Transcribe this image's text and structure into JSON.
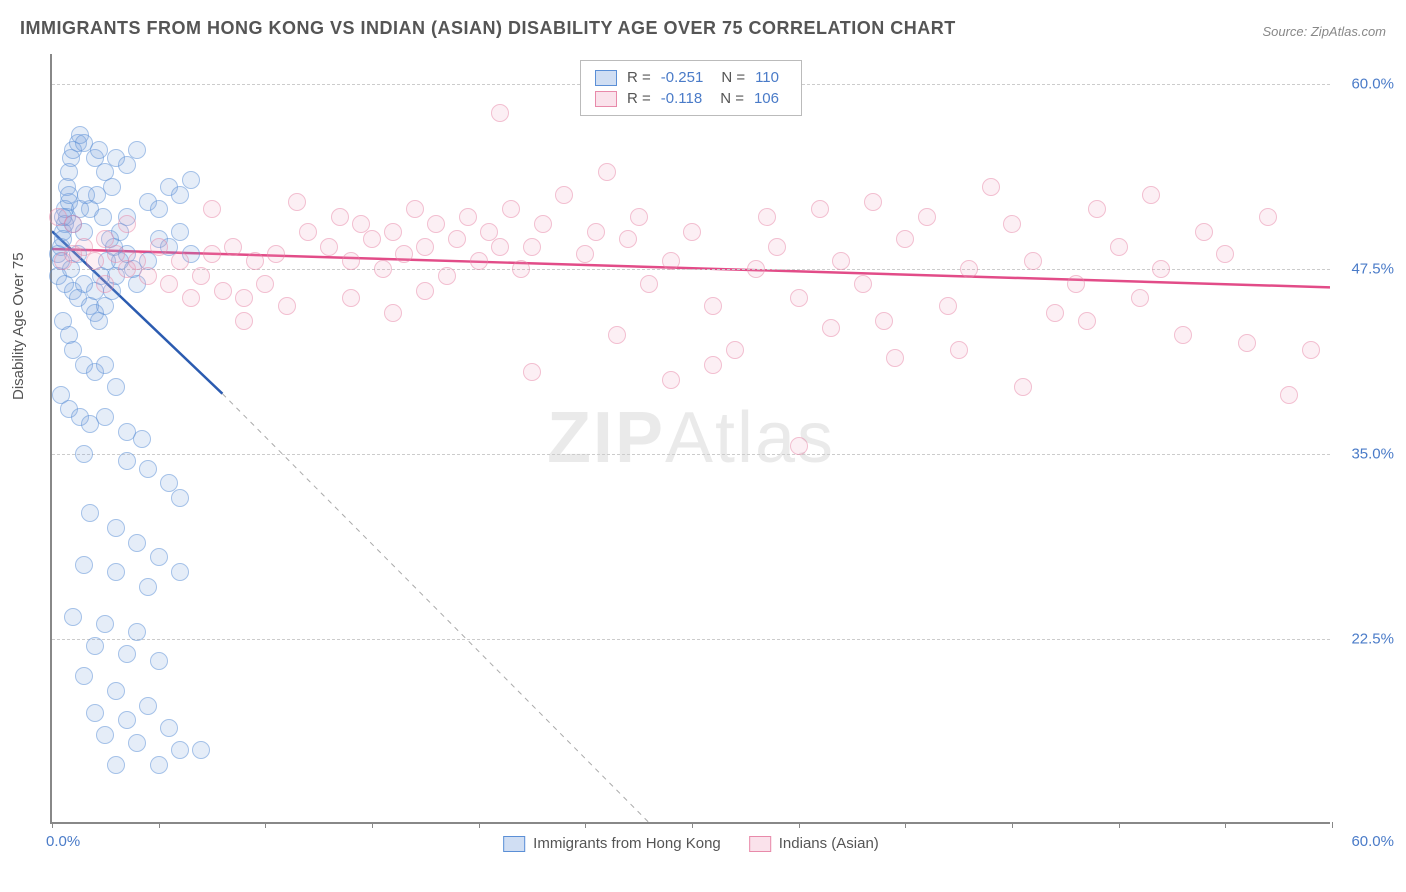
{
  "title": "IMMIGRANTS FROM HONG KONG VS INDIAN (ASIAN) DISABILITY AGE OVER 75 CORRELATION CHART",
  "source": "Source: ZipAtlas.com",
  "y_axis_label": "Disability Age Over 75",
  "watermark_strong": "ZIP",
  "watermark_light": "Atlas",
  "chart": {
    "type": "scatter",
    "xlim": [
      0,
      60
    ],
    "ylim": [
      10,
      62
    ],
    "x_origin_label": "0.0%",
    "x_max_label": "60.0%",
    "y_ticks": [
      {
        "value": 22.5,
        "label": "22.5%"
      },
      {
        "value": 35.0,
        "label": "35.0%"
      },
      {
        "value": 47.5,
        "label": "47.5%"
      },
      {
        "value": 60.0,
        "label": "60.0%"
      }
    ],
    "x_tick_values": [
      0,
      5,
      10,
      15,
      20,
      25,
      30,
      35,
      40,
      45,
      50,
      55,
      60
    ],
    "background_color": "#ffffff",
    "grid_color": "#cccccc",
    "marker_size": 18,
    "series": [
      {
        "name": "Immigrants from Hong Kong",
        "color_fill": "rgba(120,160,220,0.35)",
        "color_stroke": "#5b8fd6",
        "R": "-0.251",
        "N": "110",
        "trend": {
          "x1": 0,
          "y1": 50,
          "x2": 8,
          "y2": 39,
          "color": "#2b5bb0",
          "width": 2.5,
          "dash_ext": {
            "x2": 28,
            "y2": 10
          }
        },
        "points": [
          [
            0.3,
            48.5
          ],
          [
            0.4,
            49.0
          ],
          [
            0.5,
            50.0
          ],
          [
            0.6,
            50.5
          ],
          [
            0.7,
            51.0
          ],
          [
            0.8,
            52.0
          ],
          [
            0.3,
            47.0
          ],
          [
            0.4,
            48.0
          ],
          [
            0.5,
            49.5
          ],
          [
            0.6,
            51.5
          ],
          [
            0.7,
            53.0
          ],
          [
            0.8,
            54.0
          ],
          [
            0.9,
            55.0
          ],
          [
            1.0,
            55.5
          ],
          [
            1.2,
            56.0
          ],
          [
            1.3,
            56.5
          ],
          [
            1.5,
            56.0
          ],
          [
            2.0,
            55.0
          ],
          [
            2.2,
            55.5
          ],
          [
            2.5,
            54.0
          ],
          [
            2.8,
            53.0
          ],
          [
            3.0,
            55.0
          ],
          [
            3.5,
            54.5
          ],
          [
            4.0,
            55.5
          ],
          [
            1.0,
            46.0
          ],
          [
            1.2,
            45.5
          ],
          [
            1.5,
            46.5
          ],
          [
            1.8,
            45.0
          ],
          [
            2.0,
            44.5
          ],
          [
            2.2,
            44.0
          ],
          [
            2.5,
            45.0
          ],
          [
            2.8,
            46.0
          ],
          [
            3.0,
            47.0
          ],
          [
            3.2,
            48.0
          ],
          [
            3.5,
            48.5
          ],
          [
            3.8,
            47.5
          ],
          [
            4.0,
            46.5
          ],
          [
            4.5,
            48.0
          ],
          [
            5.0,
            49.5
          ],
          [
            5.5,
            49.0
          ],
          [
            6.0,
            50.0
          ],
          [
            6.5,
            48.5
          ],
          [
            4.5,
            52.0
          ],
          [
            5.0,
            51.5
          ],
          [
            5.5,
            53.0
          ],
          [
            6.0,
            52.5
          ],
          [
            6.5,
            53.5
          ],
          [
            0.5,
            44.0
          ],
          [
            0.8,
            43.0
          ],
          [
            1.0,
            42.0
          ],
          [
            1.5,
            41.0
          ],
          [
            2.0,
            40.5
          ],
          [
            2.5,
            41.0
          ],
          [
            3.0,
            39.5
          ],
          [
            0.4,
            39.0
          ],
          [
            0.8,
            38.0
          ],
          [
            1.3,
            37.5
          ],
          [
            1.8,
            37.0
          ],
          [
            2.5,
            37.5
          ],
          [
            3.5,
            36.5
          ],
          [
            4.2,
            36.0
          ],
          [
            1.5,
            35.0
          ],
          [
            3.5,
            34.5
          ],
          [
            4.5,
            34.0
          ],
          [
            5.5,
            33.0
          ],
          [
            6.0,
            32.0
          ],
          [
            1.8,
            31.0
          ],
          [
            3.0,
            30.0
          ],
          [
            4.0,
            29.0
          ],
          [
            5.0,
            28.0
          ],
          [
            6.0,
            27.0
          ],
          [
            1.5,
            27.5
          ],
          [
            3.0,
            27.0
          ],
          [
            4.5,
            26.0
          ],
          [
            1.0,
            24.0
          ],
          [
            2.5,
            23.5
          ],
          [
            4.0,
            23.0
          ],
          [
            2.0,
            22.0
          ],
          [
            3.5,
            21.5
          ],
          [
            5.0,
            21.0
          ],
          [
            1.5,
            20.0
          ],
          [
            3.0,
            19.0
          ],
          [
            4.5,
            18.0
          ],
          [
            2.0,
            17.5
          ],
          [
            3.5,
            17.0
          ],
          [
            5.5,
            16.5
          ],
          [
            2.5,
            16.0
          ],
          [
            4.0,
            15.5
          ],
          [
            6.0,
            15.0
          ],
          [
            3.0,
            14.0
          ],
          [
            5.0,
            14.0
          ],
          [
            7.0,
            15.0
          ],
          [
            2.0,
            46.0
          ],
          [
            2.3,
            47.0
          ],
          [
            2.6,
            48.0
          ],
          [
            2.9,
            49.0
          ],
          [
            3.2,
            50.0
          ],
          [
            3.5,
            51.0
          ],
          [
            0.6,
            46.5
          ],
          [
            0.9,
            47.5
          ],
          [
            1.2,
            48.5
          ],
          [
            1.5,
            50.0
          ],
          [
            1.8,
            51.5
          ],
          [
            2.1,
            52.5
          ],
          [
            2.4,
            51.0
          ],
          [
            2.7,
            49.5
          ],
          [
            1.0,
            50.5
          ],
          [
            1.3,
            51.5
          ],
          [
            1.6,
            52.5
          ],
          [
            0.5,
            51.0
          ],
          [
            0.8,
            52.5
          ]
        ]
      },
      {
        "name": "Indians (Asian)",
        "color_fill": "rgba(240,160,190,0.30)",
        "color_stroke": "#e88aaa",
        "R": "-0.118",
        "N": "106",
        "trend": {
          "x1": 0,
          "y1": 48.8,
          "x2": 60,
          "y2": 46.2,
          "color": "#e24c88",
          "width": 2.5
        },
        "points": [
          [
            0.5,
            48.0
          ],
          [
            1.0,
            48.5
          ],
          [
            1.5,
            49.0
          ],
          [
            2.0,
            48.0
          ],
          [
            2.5,
            49.5
          ],
          [
            3.0,
            48.5
          ],
          [
            3.5,
            47.5
          ],
          [
            4.0,
            48.0
          ],
          [
            5.0,
            49.0
          ],
          [
            5.5,
            46.5
          ],
          [
            6.0,
            48.0
          ],
          [
            7.0,
            47.0
          ],
          [
            7.5,
            48.5
          ],
          [
            8.0,
            46.0
          ],
          [
            8.5,
            49.0
          ],
          [
            9.0,
            45.5
          ],
          [
            9.5,
            48.0
          ],
          [
            10.0,
            46.5
          ],
          [
            10.5,
            48.5
          ],
          [
            11.0,
            45.0
          ],
          [
            12.0,
            50.0
          ],
          [
            13.0,
            49.0
          ],
          [
            13.5,
            51.0
          ],
          [
            14.0,
            48.0
          ],
          [
            14.5,
            50.5
          ],
          [
            15.0,
            49.5
          ],
          [
            15.5,
            47.5
          ],
          [
            16.0,
            50.0
          ],
          [
            16.5,
            48.5
          ],
          [
            17.0,
            51.5
          ],
          [
            17.5,
            49.0
          ],
          [
            18.0,
            50.5
          ],
          [
            18.5,
            47.0
          ],
          [
            19.0,
            49.5
          ],
          [
            19.5,
            51.0
          ],
          [
            20.0,
            48.0
          ],
          [
            20.5,
            50.0
          ],
          [
            21.0,
            49.0
          ],
          [
            21.5,
            51.5
          ],
          [
            22.0,
            47.5
          ],
          [
            22.5,
            49.0
          ],
          [
            23.0,
            50.5
          ],
          [
            24.0,
            52.5
          ],
          [
            25.0,
            48.5
          ],
          [
            25.5,
            50.0
          ],
          [
            26.0,
            54.0
          ],
          [
            27.0,
            49.5
          ],
          [
            27.5,
            51.0
          ],
          [
            28.0,
            46.5
          ],
          [
            29.0,
            48.0
          ],
          [
            30.0,
            50.0
          ],
          [
            31.0,
            45.0
          ],
          [
            32.0,
            42.0
          ],
          [
            33.0,
            47.5
          ],
          [
            34.0,
            49.0
          ],
          [
            35.0,
            45.5
          ],
          [
            36.0,
            51.5
          ],
          [
            37.0,
            48.0
          ],
          [
            38.0,
            46.5
          ],
          [
            38.5,
            52.0
          ],
          [
            39.0,
            44.0
          ],
          [
            40.0,
            49.5
          ],
          [
            41.0,
            51.0
          ],
          [
            42.0,
            45.0
          ],
          [
            43.0,
            47.5
          ],
          [
            44.0,
            53.0
          ],
          [
            45.0,
            50.5
          ],
          [
            46.0,
            48.0
          ],
          [
            47.0,
            44.5
          ],
          [
            48.0,
            46.5
          ],
          [
            49.0,
            51.5
          ],
          [
            50.0,
            49.0
          ],
          [
            51.0,
            45.5
          ],
          [
            52.0,
            47.5
          ],
          [
            53.0,
            43.0
          ],
          [
            54.0,
            50.0
          ],
          [
            55.0,
            48.5
          ],
          [
            56.0,
            42.5
          ],
          [
            57.0,
            51.0
          ],
          [
            58.0,
            39.0
          ],
          [
            59.0,
            42.0
          ],
          [
            35.0,
            35.5
          ],
          [
            29.0,
            40.0
          ],
          [
            21.0,
            58.0
          ],
          [
            9.0,
            44.0
          ],
          [
            16.0,
            44.5
          ],
          [
            22.5,
            40.5
          ],
          [
            26.5,
            43.0
          ],
          [
            31.0,
            41.0
          ],
          [
            33.5,
            51.0
          ],
          [
            36.5,
            43.5
          ],
          [
            39.5,
            41.5
          ],
          [
            42.5,
            42.0
          ],
          [
            45.5,
            39.5
          ],
          [
            48.5,
            44.0
          ],
          [
            51.5,
            52.5
          ],
          [
            7.5,
            51.5
          ],
          [
            11.5,
            52.0
          ],
          [
            14.0,
            45.5
          ],
          [
            17.5,
            46.0
          ],
          [
            0.3,
            51.0
          ],
          [
            1.0,
            50.5
          ],
          [
            2.5,
            46.5
          ],
          [
            4.5,
            47.0
          ],
          [
            6.5,
            45.5
          ],
          [
            3.5,
            50.5
          ]
        ]
      }
    ]
  },
  "legend_bottom": [
    {
      "label": "Immigrants from Hong Kong",
      "fill": "rgba(120,160,220,0.35)",
      "stroke": "#5b8fd6"
    },
    {
      "label": "Indians (Asian)",
      "fill": "rgba(240,160,190,0.30)",
      "stroke": "#e88aaa"
    }
  ]
}
